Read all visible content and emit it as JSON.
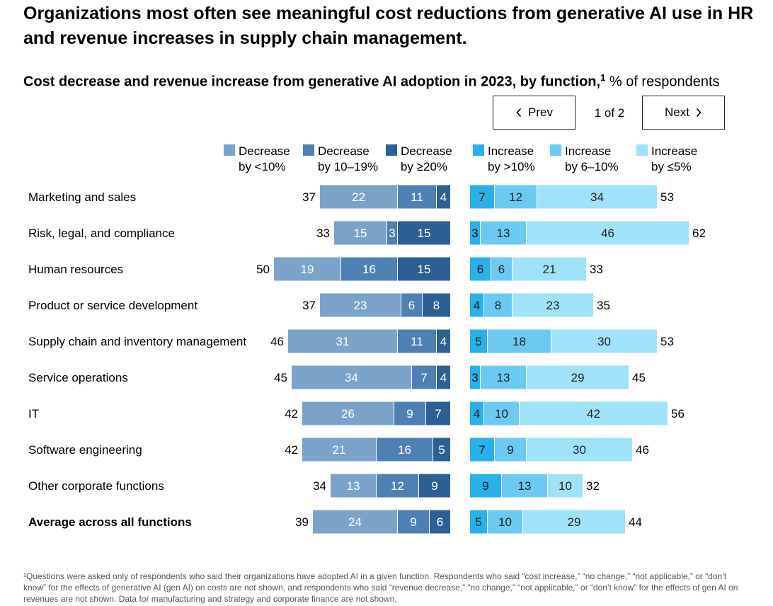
{
  "title": "Organizations most often see meaningful cost reductions from generative AI use in HR and revenue increases in supply chain management.",
  "subtitle": {
    "main": "Cost decrease and revenue increase from generative AI adoption in 2023, by function,",
    "sup": "1",
    "unit": "% of respondents"
  },
  "pager": {
    "prev_label": "Prev",
    "next_label": "Next",
    "indicator": "1 of 2"
  },
  "footnote": "¹Questions were asked only of respondents who said their organizations have adopted AI in a given function. Respondents who said “cost increase,” “no change,” “not applicable,” or “don’t know” for the effects of generative AI (gen AI) on costs are not shown, and respondents who said “revenue decrease,” “no change,” “not applicable,” or “don’t know” for the effects of gen AI on revenues are not shown. Data for manufacturing and strategy and corporate finance are not shown,",
  "colors": {
    "dec_lt10": "#7ba3ca",
    "dec_10_19": "#4f80b4",
    "dec_ge20": "#2c5f93",
    "inc_gt10": "#2ab0ea",
    "inc_6_10": "#6ccaf2",
    "inc_le5": "#a0e2f8"
  },
  "chart_data": {
    "type": "bar",
    "orientation": "horizontal",
    "stacked": true,
    "diverging": true,
    "categories": [
      "Marketing and sales",
      "Risk, legal, and compliance",
      "Human resources",
      "Product or service development",
      "Supply chain and inventory management",
      "Service operations",
      "IT",
      "Software engineering",
      "Other corporate functions",
      "Average across all functions"
    ],
    "bold_categories": [
      "Average across all functions"
    ],
    "cost_series": [
      {
        "name": "Decrease by <10%",
        "legend": [
          "Decrease",
          "by <10%"
        ],
        "color_key": "dec_lt10",
        "values": [
          22,
          15,
          19,
          23,
          31,
          34,
          26,
          21,
          13,
          24
        ]
      },
      {
        "name": "Decrease by 10–19%",
        "legend": [
          "Decrease",
          "by 10–19%"
        ],
        "color_key": "dec_10_19",
        "values": [
          11,
          3,
          16,
          6,
          11,
          7,
          9,
          16,
          12,
          9
        ]
      },
      {
        "name": "Decrease by ≥20%",
        "legend": [
          "Decrease",
          "by ≥20%"
        ],
        "color_key": "dec_ge20",
        "values": [
          4,
          15,
          15,
          8,
          4,
          4,
          7,
          5,
          9,
          6
        ]
      }
    ],
    "cost_totals": [
      37,
      33,
      50,
      37,
      46,
      45,
      42,
      42,
      34,
      39
    ],
    "revenue_series": [
      {
        "name": "Increase by >10%",
        "legend": [
          "Increase",
          "by >10%"
        ],
        "color_key": "inc_gt10",
        "values": [
          7,
          3,
          6,
          4,
          5,
          3,
          4,
          7,
          9,
          5
        ]
      },
      {
        "name": "Increase by 6–10%",
        "legend": [
          "Increase",
          "by 6–10%"
        ],
        "color_key": "inc_6_10",
        "values": [
          12,
          13,
          6,
          8,
          18,
          13,
          10,
          9,
          13,
          10
        ]
      },
      {
        "name": "Increase by ≤5%",
        "legend": [
          "Increase",
          "by ≤5%"
        ],
        "color_key": "inc_le5",
        "values": [
          34,
          46,
          21,
          23,
          30,
          29,
          42,
          30,
          10,
          29
        ]
      }
    ],
    "revenue_totals": [
      53,
      62,
      33,
      35,
      53,
      45,
      56,
      46,
      32,
      44
    ],
    "unit": "% of respondents",
    "legend_position": "top",
    "grid": false
  }
}
